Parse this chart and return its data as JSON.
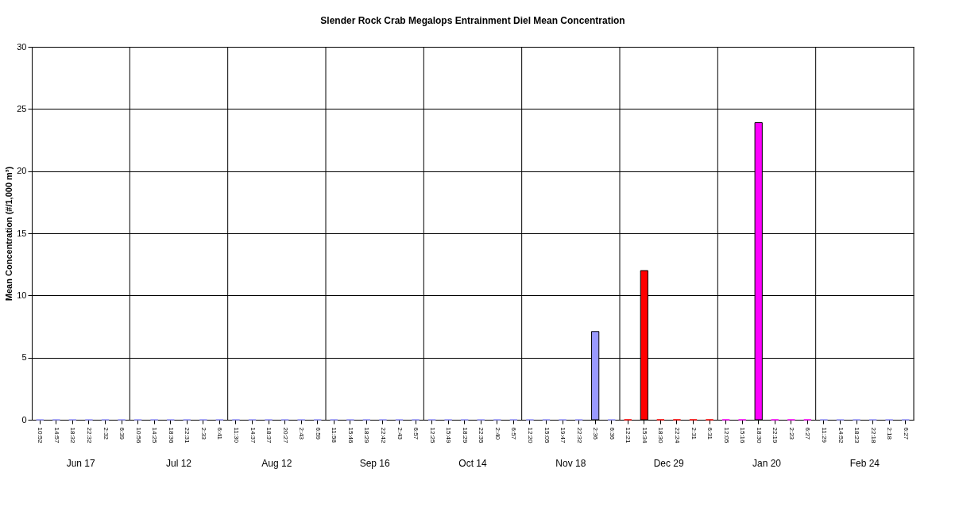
{
  "chart_data": {
    "type": "bar",
    "title": "Slender Rock Crab Megalops Entrainment Diel Mean Concentration",
    "ylabel": "Mean Concentration (#/1,000 m³)",
    "categories": [
      "10:52",
      "14:57",
      "18:32",
      "22:32",
      "2:32",
      "6:39",
      "10:56",
      "14:25",
      "18:36",
      "22:31",
      "2:33",
      "6:41",
      "11:30",
      "14:37",
      "18:37",
      "20:27",
      "2:43",
      "6:59",
      "11:58",
      "15:46",
      "18:29",
      "22:42",
      "2:43",
      "6:57",
      "12:25",
      "15:49",
      "18:29",
      "22:35",
      "2:40",
      "6:57",
      "12:20",
      "15:05",
      "19:47",
      "22:32",
      "2:36",
      "6:36",
      "12:21",
      "15:34",
      "18:30",
      "22:24",
      "2:31",
      "6:31",
      "12:05",
      "15:16",
      "18:30",
      "22:19",
      "2:23",
      "6:27",
      "11:29",
      "14:52",
      "18:23",
      "22:18",
      "2:18",
      "6:27"
    ],
    "values": [
      0,
      0,
      0,
      0,
      0,
      0,
      0,
      0,
      0,
      0,
      0,
      0,
      0,
      0,
      0,
      0,
      0,
      0,
      0,
      0,
      0,
      0,
      0,
      0,
      0,
      0,
      0,
      0,
      0,
      0,
      0,
      0,
      0,
      0,
      7.1,
      0,
      0,
      12.0,
      0,
      0,
      0,
      0,
      0,
      0,
      23.9,
      0,
      0,
      0,
      0,
      0,
      0,
      0,
      0,
      0
    ],
    "colors": [
      "#9999ff",
      "#9999ff",
      "#9999ff",
      "#9999ff",
      "#9999ff",
      "#9999ff",
      "#9999ff",
      "#9999ff",
      "#9999ff",
      "#9999ff",
      "#9999ff",
      "#9999ff",
      "#9999ff",
      "#9999ff",
      "#9999ff",
      "#9999ff",
      "#9999ff",
      "#9999ff",
      "#9999ff",
      "#9999ff",
      "#9999ff",
      "#9999ff",
      "#9999ff",
      "#9999ff",
      "#9999ff",
      "#9999ff",
      "#9999ff",
      "#9999ff",
      "#9999ff",
      "#9999ff",
      "#9999ff",
      "#9999ff",
      "#9999ff",
      "#9999ff",
      "#9999ff",
      "#9999ff",
      "#ff0000",
      "#ff0000",
      "#ff0000",
      "#ff0000",
      "#ff0000",
      "#ff0000",
      "#ff00ff",
      "#ff00ff",
      "#ff00ff",
      "#ff00ff",
      "#ff00ff",
      "#ff00ff",
      "#9999ff",
      "#9999ff",
      "#9999ff",
      "#9999ff",
      "#9999ff",
      "#9999ff"
    ],
    "annotations": [
      "Jun 17",
      "Jul 12",
      "Aug 12",
      "Sep 16",
      "Oct 14",
      "Nov 18",
      "Dec 29",
      "Jan 20",
      "Feb 24"
    ],
    "ylim": [
      0,
      30
    ],
    "yticks": [
      0,
      5,
      10,
      15,
      20,
      25,
      30
    ],
    "grid": true
  }
}
